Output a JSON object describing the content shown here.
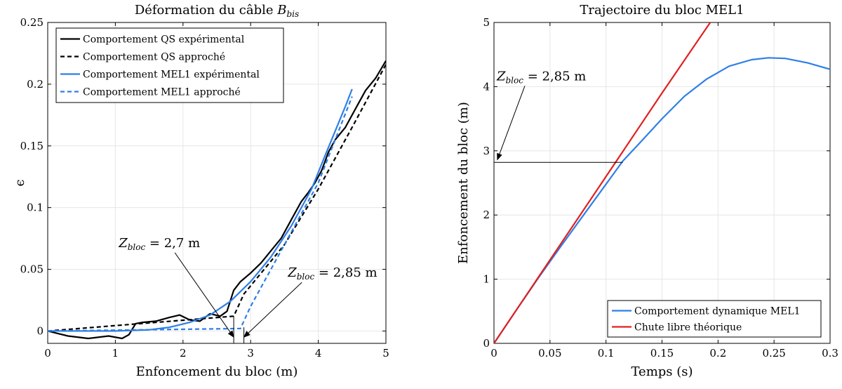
{
  "chart_data": [
    {
      "type": "line",
      "title": "Déformation du câble",
      "title_var": "B",
      "title_sub": "bis",
      "xlabel": "Enfoncement du bloc (m)",
      "ylabel": "ϵ",
      "xlim": [
        0,
        5
      ],
      "ylim": [
        -0.01,
        0.25
      ],
      "xticks": [
        0,
        1,
        2,
        3,
        4,
        5
      ],
      "xtick_labels": [
        "0",
        "1",
        "2",
        "3",
        "4",
        "5"
      ],
      "yticks": [
        0,
        0.05,
        0.1,
        0.15,
        0.2,
        0.25
      ],
      "ytick_labels": [
        "0",
        "0.05",
        "0.1",
        "0.15",
        "0.2",
        "0.25"
      ],
      "grid": true,
      "legend_position": "top-left",
      "colors": {
        "black": "#000000",
        "blue": "#2f7fe6"
      },
      "series": [
        {
          "name": "Comportement QS expérimental",
          "color": "#000000",
          "style": "solid",
          "x": [
            0,
            0.3,
            0.6,
            0.9,
            1.1,
            1.2,
            1.3,
            1.4,
            1.6,
            1.8,
            1.95,
            2.1,
            2.25,
            2.4,
            2.55,
            2.65,
            2.75,
            2.85,
            3.0,
            3.15,
            3.3,
            3.45,
            3.6,
            3.75,
            3.85,
            3.95,
            4.05,
            4.15,
            4.25,
            4.4,
            4.55,
            4.7,
            4.85,
            5.0
          ],
          "y": [
            0.0,
            -0.004,
            -0.006,
            -0.004,
            -0.006,
            -0.003,
            0.006,
            0.007,
            0.008,
            0.011,
            0.013,
            0.009,
            0.008,
            0.014,
            0.012,
            0.016,
            0.033,
            0.04,
            0.047,
            0.055,
            0.065,
            0.075,
            0.09,
            0.105,
            0.112,
            0.12,
            0.13,
            0.145,
            0.155,
            0.165,
            0.18,
            0.195,
            0.205,
            0.219
          ]
        },
        {
          "name": "Comportement QS approché",
          "color": "#000000",
          "style": "dashed",
          "x": [
            0,
            2.75,
            2.9,
            3.5,
            4.0,
            4.5,
            5.0
          ],
          "y": [
            0.0,
            0.012,
            0.03,
            0.07,
            0.115,
            0.165,
            0.216
          ]
        },
        {
          "name": "Comportement MEL1 expérimental",
          "color": "#2f7fe6",
          "style": "solid",
          "x": [
            0,
            0.5,
            1.0,
            1.5,
            1.8,
            2.1,
            2.4,
            2.7,
            3.0,
            3.3,
            3.6,
            3.9,
            4.1,
            4.25,
            4.4,
            4.5
          ],
          "y": [
            0.0,
            0.0,
            0.0,
            0.001,
            0.003,
            0.007,
            0.013,
            0.024,
            0.04,
            0.06,
            0.085,
            0.115,
            0.142,
            0.162,
            0.182,
            0.196
          ]
        },
        {
          "name": "Comportement MEL1 approché",
          "color": "#2f7fe6",
          "style": "dashed",
          "x": [
            0,
            2.85,
            3.0,
            3.6,
            4.0,
            4.5
          ],
          "y": [
            0.0,
            0.002,
            0.02,
            0.08,
            0.12,
            0.19
          ]
        },
        {
          "name": "Zbloc 2,7 m marker",
          "color": "#000000",
          "style": "solid",
          "x": [
            2.75,
            2.75
          ],
          "y": [
            -0.01,
            0.012
          ]
        },
        {
          "name": "Zbloc 2,85 m marker",
          "color": "#000000",
          "style": "solid",
          "x": [
            2.9,
            2.9
          ],
          "y": [
            -0.01,
            0.003
          ]
        }
      ],
      "legend": [
        "Comportement QS expérimental",
        "Comportement QS approché",
        "Comportement MEL1 expérimental",
        "Comportement MEL1 approché"
      ],
      "annotations": [
        {
          "var": "Z",
          "sub": "bloc",
          "text": " = 2,7 m",
          "x": 1.05,
          "y": 0.068,
          "arrow_to": [
            2.75,
            -0.005
          ]
        },
        {
          "var": "Z",
          "sub": "bloc",
          "text": " = 2,85 m",
          "x": 3.55,
          "y": 0.044,
          "arrow_to": [
            2.9,
            -0.005
          ]
        }
      ]
    },
    {
      "type": "line",
      "title": "Trajectoire du bloc MEL1",
      "xlabel": "Temps (s)",
      "ylabel": "Enfoncement du bloc (m)",
      "xlim": [
        0,
        0.3
      ],
      "ylim": [
        0,
        5
      ],
      "xticks": [
        0,
        0.05,
        0.1,
        0.15,
        0.2,
        0.25,
        0.3
      ],
      "xtick_labels": [
        "0",
        "0.05",
        "0.1",
        "0.15",
        "0.2",
        "0.25",
        "0.3"
      ],
      "yticks": [
        0,
        1,
        2,
        3,
        4,
        5
      ],
      "ytick_labels": [
        "0",
        "1",
        "2",
        "3",
        "4",
        "5"
      ],
      "grid": true,
      "legend_position": "bottom-right",
      "colors": {
        "blue": "#2f7fe6",
        "red": "#e02020"
      },
      "series": [
        {
          "name": "Comportement dynamique MEL1",
          "color": "#2f7fe6",
          "style": "solid",
          "x": [
            0,
            0.02,
            0.04,
            0.06,
            0.08,
            0.1,
            0.115,
            0.13,
            0.15,
            0.17,
            0.19,
            0.21,
            0.23,
            0.245,
            0.26,
            0.28,
            0.3
          ],
          "y": [
            0,
            0.52,
            1.03,
            1.52,
            2.0,
            2.48,
            2.84,
            3.12,
            3.5,
            3.85,
            4.12,
            4.32,
            4.42,
            4.45,
            4.44,
            4.37,
            4.27
          ]
        },
        {
          "name": "Chute libre théorique",
          "color": "#e02020",
          "style": "solid",
          "x": [
            0,
            0.05,
            0.1,
            0.15,
            0.193
          ],
          "y": [
            0,
            1.3,
            2.6,
            3.9,
            5.0
          ]
        },
        {
          "name": "Zbloc 2,85 m level",
          "color": "#000000",
          "style": "solid",
          "x": [
            0,
            0.115
          ],
          "y": [
            2.82,
            2.82
          ]
        }
      ],
      "legend": [
        "Comportement dynamique MEL1",
        "Chute libre théorique"
      ],
      "annotations": [
        {
          "var": "Z",
          "sub": "bloc",
          "text": " = 2,85 m",
          "x": 0.0025,
          "y": 4.1,
          "arrow_to": [
            0.003,
            2.86
          ]
        }
      ]
    }
  ]
}
